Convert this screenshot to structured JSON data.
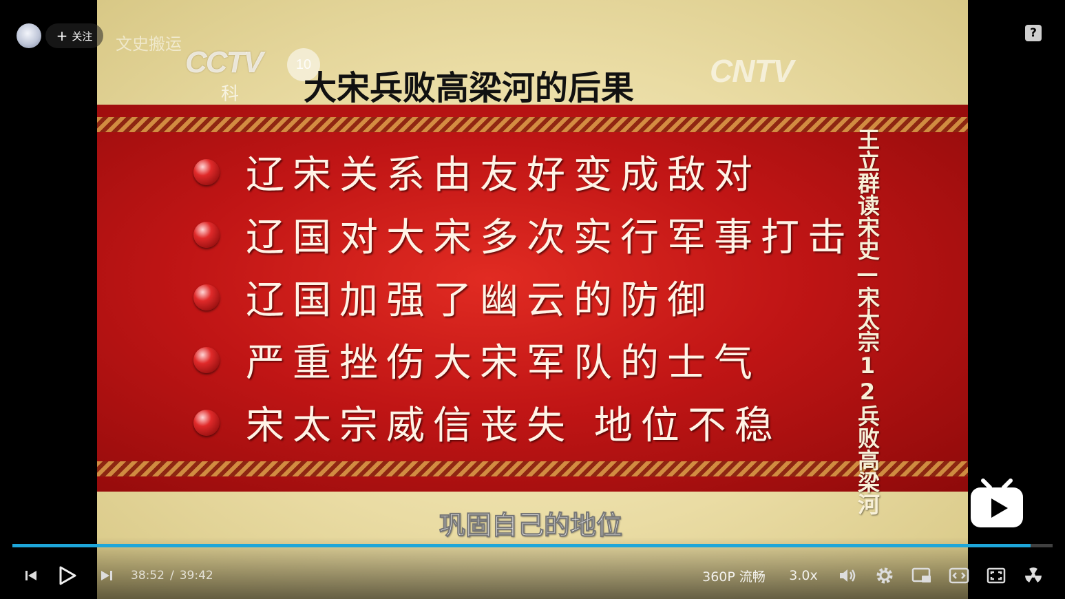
{
  "uploader": {
    "follow_label": "关注",
    "name": "文史搬运"
  },
  "video": {
    "logos": {
      "cctv": "CCTV",
      "channel": "10",
      "channel_sub": "科教",
      "cntv": "CNTV"
    },
    "slide_title": "大宋兵败高梁河的后果",
    "bullets": [
      "辽宋关系由友好变成敌对",
      "辽国对大宋多次实行军事打击",
      "辽国加强了幽云的防御",
      "严重挫伤大宋军队的士气",
      "宋太宗威信丧失 地位不稳"
    ],
    "vertical_caption": "王立群读宋史—宋太宗12兵败高梁河",
    "subtitle": "巩固自己的地位"
  },
  "player": {
    "current_time": "38:52",
    "time_separator": "/",
    "duration": "39:42",
    "progress_fraction": 0.979,
    "quality": "360P 流畅",
    "speed": "3.0x",
    "accent_color": "#1ea6d9"
  },
  "icons": {
    "help": "?"
  }
}
